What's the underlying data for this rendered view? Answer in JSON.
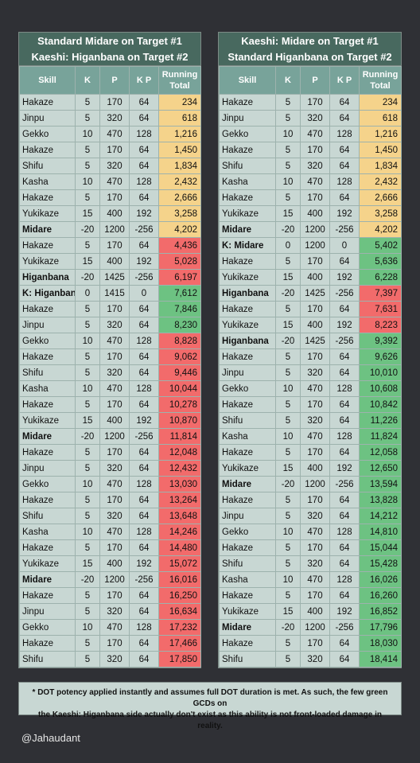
{
  "headers": {
    "skill": "Skill",
    "k": "K",
    "p": "P",
    "kp": "K P",
    "running_total_line1": "Running",
    "running_total_line2": "Total"
  },
  "colors": {
    "background": "#2f3035",
    "title_bg": "#48695f",
    "header_bg": "#78a39a",
    "row_bg": "#c8d7d3",
    "yellow": "#f5d38b",
    "red": "#f26b6b",
    "green": "#6dc282"
  },
  "left_panel": {
    "title_line1": "Standard Midare on Target #1",
    "title_line2": "Kaeshi: Higanbana on Target #2",
    "rows": [
      {
        "skill": "Hakaze",
        "k": "5",
        "p": "170",
        "kp": "64",
        "total": "234",
        "color": "yellow",
        "bold": false
      },
      {
        "skill": "Jinpu",
        "k": "5",
        "p": "320",
        "kp": "64",
        "total": "618",
        "color": "yellow",
        "bold": false
      },
      {
        "skill": "Gekko",
        "k": "10",
        "p": "470",
        "kp": "128",
        "total": "1,216",
        "color": "yellow",
        "bold": false
      },
      {
        "skill": "Hakaze",
        "k": "5",
        "p": "170",
        "kp": "64",
        "total": "1,450",
        "color": "yellow",
        "bold": false
      },
      {
        "skill": "Shifu",
        "k": "5",
        "p": "320",
        "kp": "64",
        "total": "1,834",
        "color": "yellow",
        "bold": false
      },
      {
        "skill": "Kasha",
        "k": "10",
        "p": "470",
        "kp": "128",
        "total": "2,432",
        "color": "yellow",
        "bold": false
      },
      {
        "skill": "Hakaze",
        "k": "5",
        "p": "170",
        "kp": "64",
        "total": "2,666",
        "color": "yellow",
        "bold": false
      },
      {
        "skill": "Yukikaze",
        "k": "15",
        "p": "400",
        "kp": "192",
        "total": "3,258",
        "color": "yellow",
        "bold": false
      },
      {
        "skill": "Midare",
        "k": "-20",
        "p": "1200",
        "kp": "-256",
        "total": "4,202",
        "color": "yellow",
        "bold": true
      },
      {
        "skill": "Hakaze",
        "k": "5",
        "p": "170",
        "kp": "64",
        "total": "4,436",
        "color": "red",
        "bold": false
      },
      {
        "skill": "Yukikaze",
        "k": "15",
        "p": "400",
        "kp": "192",
        "total": "5,028",
        "color": "red",
        "bold": false
      },
      {
        "skill": "Higanbana",
        "k": "-20",
        "p": "1425",
        "kp": "-256",
        "total": "6,197",
        "color": "red",
        "bold": true
      },
      {
        "skill": "K: Higanbana",
        "k": "0",
        "p": "1415",
        "kp": "0",
        "total": "7,612",
        "color": "green",
        "bold": true
      },
      {
        "skill": "Hakaze",
        "k": "5",
        "p": "170",
        "kp": "64",
        "total": "7,846",
        "color": "green",
        "bold": false
      },
      {
        "skill": "Jinpu",
        "k": "5",
        "p": "320",
        "kp": "64",
        "total": "8,230",
        "color": "green",
        "bold": false
      },
      {
        "skill": "Gekko",
        "k": "10",
        "p": "470",
        "kp": "128",
        "total": "8,828",
        "color": "red",
        "bold": false
      },
      {
        "skill": "Hakaze",
        "k": "5",
        "p": "170",
        "kp": "64",
        "total": "9,062",
        "color": "red",
        "bold": false
      },
      {
        "skill": "Shifu",
        "k": "5",
        "p": "320",
        "kp": "64",
        "total": "9,446",
        "color": "red",
        "bold": false
      },
      {
        "skill": "Kasha",
        "k": "10",
        "p": "470",
        "kp": "128",
        "total": "10,044",
        "color": "red",
        "bold": false
      },
      {
        "skill": "Hakaze",
        "k": "5",
        "p": "170",
        "kp": "64",
        "total": "10,278",
        "color": "red",
        "bold": false
      },
      {
        "skill": "Yukikaze",
        "k": "15",
        "p": "400",
        "kp": "192",
        "total": "10,870",
        "color": "red",
        "bold": false
      },
      {
        "skill": "Midare",
        "k": "-20",
        "p": "1200",
        "kp": "-256",
        "total": "11,814",
        "color": "red",
        "bold": true
      },
      {
        "skill": "Hakaze",
        "k": "5",
        "p": "170",
        "kp": "64",
        "total": "12,048",
        "color": "red",
        "bold": false
      },
      {
        "skill": "Jinpu",
        "k": "5",
        "p": "320",
        "kp": "64",
        "total": "12,432",
        "color": "red",
        "bold": false
      },
      {
        "skill": "Gekko",
        "k": "10",
        "p": "470",
        "kp": "128",
        "total": "13,030",
        "color": "red",
        "bold": false
      },
      {
        "skill": "Hakaze",
        "k": "5",
        "p": "170",
        "kp": "64",
        "total": "13,264",
        "color": "red",
        "bold": false
      },
      {
        "skill": "Shifu",
        "k": "5",
        "p": "320",
        "kp": "64",
        "total": "13,648",
        "color": "red",
        "bold": false
      },
      {
        "skill": "Kasha",
        "k": "10",
        "p": "470",
        "kp": "128",
        "total": "14,246",
        "color": "red",
        "bold": false
      },
      {
        "skill": "Hakaze",
        "k": "5",
        "p": "170",
        "kp": "64",
        "total": "14,480",
        "color": "red",
        "bold": false
      },
      {
        "skill": "Yukikaze",
        "k": "15",
        "p": "400",
        "kp": "192",
        "total": "15,072",
        "color": "red",
        "bold": false
      },
      {
        "skill": "Midare",
        "k": "-20",
        "p": "1200",
        "kp": "-256",
        "total": "16,016",
        "color": "red",
        "bold": true
      },
      {
        "skill": "Hakaze",
        "k": "5",
        "p": "170",
        "kp": "64",
        "total": "16,250",
        "color": "red",
        "bold": false
      },
      {
        "skill": "Jinpu",
        "k": "5",
        "p": "320",
        "kp": "64",
        "total": "16,634",
        "color": "red",
        "bold": false
      },
      {
        "skill": "Gekko",
        "k": "10",
        "p": "470",
        "kp": "128",
        "total": "17,232",
        "color": "red",
        "bold": false
      },
      {
        "skill": "Hakaze",
        "k": "5",
        "p": "170",
        "kp": "64",
        "total": "17,466",
        "color": "red",
        "bold": false
      },
      {
        "skill": "Shifu",
        "k": "5",
        "p": "320",
        "kp": "64",
        "total": "17,850",
        "color": "red",
        "bold": false
      }
    ]
  },
  "right_panel": {
    "title_line1": "Kaeshi: Midare on Target #1",
    "title_line2": "Standard Higanbana on Target #2",
    "rows": [
      {
        "skill": "Hakaze",
        "k": "5",
        "p": "170",
        "kp": "64",
        "total": "234",
        "color": "yellow",
        "bold": false
      },
      {
        "skill": "Jinpu",
        "k": "5",
        "p": "320",
        "kp": "64",
        "total": "618",
        "color": "yellow",
        "bold": false
      },
      {
        "skill": "Gekko",
        "k": "10",
        "p": "470",
        "kp": "128",
        "total": "1,216",
        "color": "yellow",
        "bold": false
      },
      {
        "skill": "Hakaze",
        "k": "5",
        "p": "170",
        "kp": "64",
        "total": "1,450",
        "color": "yellow",
        "bold": false
      },
      {
        "skill": "Shifu",
        "k": "5",
        "p": "320",
        "kp": "64",
        "total": "1,834",
        "color": "yellow",
        "bold": false
      },
      {
        "skill": "Kasha",
        "k": "10",
        "p": "470",
        "kp": "128",
        "total": "2,432",
        "color": "yellow",
        "bold": false
      },
      {
        "skill": "Hakaze",
        "k": "5",
        "p": "170",
        "kp": "64",
        "total": "2,666",
        "color": "yellow",
        "bold": false
      },
      {
        "skill": "Yukikaze",
        "k": "15",
        "p": "400",
        "kp": "192",
        "total": "3,258",
        "color": "yellow",
        "bold": false
      },
      {
        "skill": "Midare",
        "k": "-20",
        "p": "1200",
        "kp": "-256",
        "total": "4,202",
        "color": "yellow",
        "bold": true
      },
      {
        "skill": "K: Midare",
        "k": "0",
        "p": "1200",
        "kp": "0",
        "total": "5,402",
        "color": "green",
        "bold": true
      },
      {
        "skill": "Hakaze",
        "k": "5",
        "p": "170",
        "kp": "64",
        "total": "5,636",
        "color": "green",
        "bold": false
      },
      {
        "skill": "Yukikaze",
        "k": "15",
        "p": "400",
        "kp": "192",
        "total": "6,228",
        "color": "green",
        "bold": false
      },
      {
        "skill": "Higanbana",
        "k": "-20",
        "p": "1425",
        "kp": "-256",
        "total": "7,397",
        "color": "red",
        "bold": true
      },
      {
        "skill": "Hakaze",
        "k": "5",
        "p": "170",
        "kp": "64",
        "total": "7,631",
        "color": "red",
        "bold": false
      },
      {
        "skill": "Yukikaze",
        "k": "15",
        "p": "400",
        "kp": "192",
        "total": "8,223",
        "color": "red",
        "bold": false
      },
      {
        "skill": "Higanbana",
        "k": "-20",
        "p": "1425",
        "kp": "-256",
        "total": "9,392",
        "color": "green",
        "bold": true
      },
      {
        "skill": "Hakaze",
        "k": "5",
        "p": "170",
        "kp": "64",
        "total": "9,626",
        "color": "green",
        "bold": false
      },
      {
        "skill": "Jinpu",
        "k": "5",
        "p": "320",
        "kp": "64",
        "total": "10,010",
        "color": "green",
        "bold": false
      },
      {
        "skill": "Gekko",
        "k": "10",
        "p": "470",
        "kp": "128",
        "total": "10,608",
        "color": "green",
        "bold": false
      },
      {
        "skill": "Hakaze",
        "k": "5",
        "p": "170",
        "kp": "64",
        "total": "10,842",
        "color": "green",
        "bold": false
      },
      {
        "skill": "Shifu",
        "k": "5",
        "p": "320",
        "kp": "64",
        "total": "11,226",
        "color": "green",
        "bold": false
      },
      {
        "skill": "Kasha",
        "k": "10",
        "p": "470",
        "kp": "128",
        "total": "11,824",
        "color": "green",
        "bold": false
      },
      {
        "skill": "Hakaze",
        "k": "5",
        "p": "170",
        "kp": "64",
        "total": "12,058",
        "color": "green",
        "bold": false
      },
      {
        "skill": "Yukikaze",
        "k": "15",
        "p": "400",
        "kp": "192",
        "total": "12,650",
        "color": "green",
        "bold": false
      },
      {
        "skill": "Midare",
        "k": "-20",
        "p": "1200",
        "kp": "-256",
        "total": "13,594",
        "color": "green",
        "bold": true
      },
      {
        "skill": "Hakaze",
        "k": "5",
        "p": "170",
        "kp": "64",
        "total": "13,828",
        "color": "green",
        "bold": false
      },
      {
        "skill": "Jinpu",
        "k": "5",
        "p": "320",
        "kp": "64",
        "total": "14,212",
        "color": "green",
        "bold": false
      },
      {
        "skill": "Gekko",
        "k": "10",
        "p": "470",
        "kp": "128",
        "total": "14,810",
        "color": "green",
        "bold": false
      },
      {
        "skill": "Hakaze",
        "k": "5",
        "p": "170",
        "kp": "64",
        "total": "15,044",
        "color": "green",
        "bold": false
      },
      {
        "skill": "Shifu",
        "k": "5",
        "p": "320",
        "kp": "64",
        "total": "15,428",
        "color": "green",
        "bold": false
      },
      {
        "skill": "Kasha",
        "k": "10",
        "p": "470",
        "kp": "128",
        "total": "16,026",
        "color": "green",
        "bold": false
      },
      {
        "skill": "Hakaze",
        "k": "5",
        "p": "170",
        "kp": "64",
        "total": "16,260",
        "color": "green",
        "bold": false
      },
      {
        "skill": "Yukikaze",
        "k": "15",
        "p": "400",
        "kp": "192",
        "total": "16,852",
        "color": "green",
        "bold": false
      },
      {
        "skill": "Midare",
        "k": "-20",
        "p": "1200",
        "kp": "-256",
        "total": "17,796",
        "color": "green",
        "bold": true
      },
      {
        "skill": "Hakaze",
        "k": "5",
        "p": "170",
        "kp": "64",
        "total": "18,030",
        "color": "green",
        "bold": false
      },
      {
        "skill": "Shifu",
        "k": "5",
        "p": "320",
        "kp": "64",
        "total": "18,414",
        "color": "green",
        "bold": false
      }
    ]
  },
  "footnote": {
    "line1": "* DOT potency applied instantly and assumes full DOT duration is met. As such, the few green GCDs on",
    "line2": "the Kaeshi: Higanbana side actually don't exist as this ability is not front-loaded damage in reality."
  },
  "credit": "@Jahaudant"
}
